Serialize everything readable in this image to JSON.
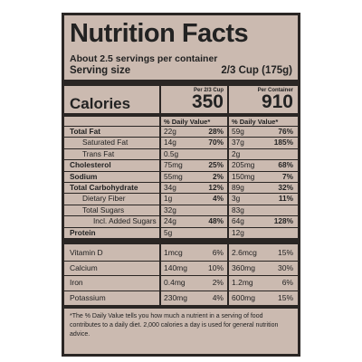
{
  "header": {
    "title": "Nutrition Facts",
    "servings": "About 2.5 servings per container",
    "serving_size_label": "Serving size",
    "serving_size": "2/3 Cup (175g)"
  },
  "columns": [
    "Per 2/3 Cup",
    "Per Container"
  ],
  "calories": {
    "label": "Calories",
    "values": [
      "350",
      "910"
    ]
  },
  "dv_header": [
    "% Daily Value*",
    "% Daily Value*"
  ],
  "rows": [
    {
      "name": "Total Fat",
      "a1": "22g",
      "d1": "28%",
      "a2": "59g",
      "d2": "76%"
    },
    {
      "name": "Saturated Fat",
      "a1": "14g",
      "d1": "70%",
      "a2": "37g",
      "d2": "185%"
    },
    {
      "name": "Trans Fat",
      "a1": "0.5g",
      "a2": "2g"
    },
    {
      "name": "Cholesterol",
      "a1": "75mg",
      "d1": "25%",
      "a2": "205mg",
      "d2": "68%"
    },
    {
      "name": "Sodium",
      "a1": "55mg",
      "d1": "2%",
      "a2": "150mg",
      "d2": "7%"
    },
    {
      "name": "Total Carbohydrate",
      "a1": "34g",
      "d1": "12%",
      "a2": "89g",
      "d2": "32%"
    },
    {
      "name": "Dietary Fiber",
      "a1": "1g",
      "d1": "4%",
      "a2": "3g",
      "d2": "11%"
    },
    {
      "name": "Total Sugars",
      "a1": "32g",
      "a2": "83g"
    },
    {
      "name": "Incl. Added Sugars",
      "a1": "24g",
      "d1": "48%",
      "a2": "64g",
      "d2": "128%"
    },
    {
      "name": "Protein",
      "a1": "5g",
      "a2": "12g"
    }
  ],
  "vitamins": [
    {
      "name": "Vitamin D",
      "a1": "1mcg",
      "d1": "6%",
      "a2": "2.6mcg",
      "d2": "15%"
    },
    {
      "name": "Calcium",
      "a1": "140mg",
      "d1": "10%",
      "a2": "360mg",
      "d2": "30%"
    },
    {
      "name": "Iron",
      "a1": "0.4mg",
      "d1": "2%",
      "a2": "1.2mg",
      "d2": "6%"
    },
    {
      "name": "Potassium",
      "a1": "230mg",
      "d1": "4%",
      "a2": "600mg",
      "d2": "15%"
    }
  ],
  "footnote": "*The % Daily Value tells you how much a nutrient in a serving of food contributes to a daily diet. 2,000 calories a day is used for general nutrition advice."
}
